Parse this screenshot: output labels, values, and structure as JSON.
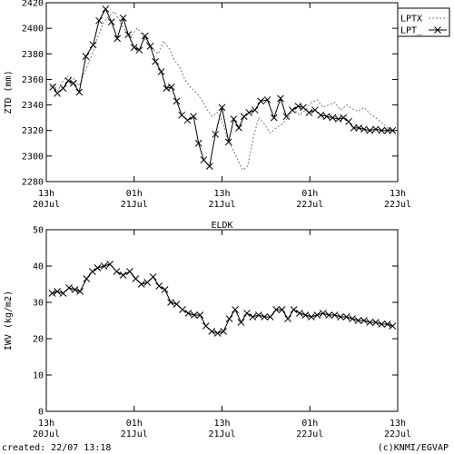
{
  "chart_data": [
    {
      "type": "line",
      "ylabel": "ZTD (mm)",
      "ylim": [
        2280,
        2420
      ],
      "yticks": [
        2280,
        2300,
        2320,
        2340,
        2360,
        2380,
        2400,
        2420
      ],
      "xlim": [
        0,
        48
      ],
      "xticks": [
        {
          "x": 0,
          "top": "13h",
          "bottom": "20Jul"
        },
        {
          "x": 12,
          "top": "01h",
          "bottom": "21Jul"
        },
        {
          "x": 24,
          "top": "13h",
          "bottom": "21Jul"
        },
        {
          "x": 36,
          "top": "01h",
          "bottom": "22Jul"
        },
        {
          "x": 48,
          "top": "13h",
          "bottom": "22Jul"
        }
      ],
      "legend": "top-right",
      "series": [
        {
          "name": "LPTX",
          "style": "dotted",
          "x": [
            0.5,
            1.0,
            1.6,
            2.2,
            3.0,
            3.8,
            4.5,
            5.4,
            6.3,
            7.0,
            7.8,
            8.6,
            9.3,
            10.0,
            10.8,
            11.6,
            12.4,
            13.1,
            13.8,
            14.5,
            15.3,
            16.0,
            16.8,
            17.5,
            18.2,
            18.9,
            19.7,
            20.4,
            21.1,
            21.8,
            22.6,
            23.3,
            24.0,
            24.7,
            25.4,
            26.1,
            26.8,
            27.5,
            28.3,
            29.0,
            29.8,
            30.6,
            31.4,
            32.2,
            33.0,
            33.8,
            34.6,
            35.4,
            36.2,
            37.0,
            37.8,
            38.6,
            39.4,
            40.2,
            41.0,
            41.8,
            42.6,
            43.4,
            44.2,
            45.0,
            45.8,
            46.6,
            47.4
          ],
          "y": [
            2354,
            2356,
            2351,
            2358,
            2363,
            2360,
            2355,
            2368,
            2380,
            2393,
            2404,
            2410,
            2413,
            2406,
            2398,
            2394,
            2400,
            2395,
            2388,
            2384,
            2380,
            2390,
            2384,
            2375,
            2370,
            2360,
            2354,
            2350,
            2345,
            2338,
            2331,
            2334,
            2328,
            2315,
            2306,
            2298,
            2289,
            2292,
            2315,
            2330,
            2325,
            2318,
            2322,
            2325,
            2330,
            2336,
            2332,
            2336,
            2342,
            2344,
            2338,
            2340,
            2342,
            2336,
            2340,
            2337,
            2335,
            2338,
            2333,
            2330,
            2326,
            2322,
            2319
          ]
        },
        {
          "name": "LPT_",
          "style": "solid-cross",
          "x": [
            0.9,
            1.5,
            2.3,
            3.0,
            3.7,
            4.5,
            5.4,
            6.4,
            7.2,
            8.1,
            8.9,
            9.7,
            10.5,
            11.2,
            12.0,
            12.7,
            13.5,
            14.2,
            14.9,
            15.7,
            16.4,
            17.1,
            17.8,
            18.5,
            19.3,
            20.1,
            20.8,
            21.5,
            22.3,
            23.1,
            24.0,
            24.9,
            25.6,
            26.3,
            27.0,
            27.7,
            28.5,
            29.3,
            30.2,
            31.1,
            32.0,
            32.8,
            33.6,
            34.4,
            35.1,
            35.9,
            36.7,
            37.5,
            38.3,
            39.1,
            39.9,
            40.6,
            41.3,
            42.0,
            42.7,
            43.4,
            44.2,
            45.0,
            45.8,
            46.6,
            47.3
          ],
          "y": [
            2354,
            2349,
            2353,
            2359,
            2357,
            2350,
            2378,
            2387,
            2406,
            2415,
            2405,
            2392,
            2408,
            2395,
            2385,
            2383,
            2394,
            2386,
            2374,
            2366,
            2353,
            2354,
            2343,
            2332,
            2328,
            2331,
            2310,
            2297,
            2292,
            2317,
            2338,
            2311,
            2329,
            2322,
            2331,
            2334,
            2336,
            2343,
            2344,
            2330,
            2345,
            2331,
            2336,
            2339,
            2338,
            2334,
            2336,
            2332,
            2331,
            2330,
            2329,
            2330,
            2327,
            2322,
            2322,
            2321,
            2320,
            2321,
            2320,
            2320,
            2320
          ]
        }
      ]
    },
    {
      "type": "line",
      "title": "ELDK",
      "ylabel": "IWV (kg/m2)",
      "ylim": [
        0,
        50
      ],
      "yticks": [
        0,
        10,
        20,
        30,
        40,
        50
      ],
      "xlim": [
        0,
        48
      ],
      "xticks": [
        {
          "x": 0,
          "top": "13h",
          "bottom": "20Jul"
        },
        {
          "x": 12,
          "top": "01h",
          "bottom": "21Jul"
        },
        {
          "x": 24,
          "top": "13h",
          "bottom": "21Jul"
        },
        {
          "x": 36,
          "top": "01h",
          "bottom": "22Jul"
        },
        {
          "x": 48,
          "top": "13h",
          "bottom": "22Jul"
        }
      ],
      "series": [
        {
          "name": "IWV",
          "style": "solid-cross",
          "x": [
            0.8,
            1.5,
            2.3,
            3.1,
            3.9,
            4.6,
            5.5,
            6.3,
            7.0,
            7.9,
            8.7,
            9.6,
            10.5,
            11.4,
            12.2,
            13.0,
            13.8,
            14.6,
            15.4,
            16.2,
            17.0,
            17.8,
            18.6,
            19.4,
            20.2,
            21.0,
            21.8,
            22.6,
            23.4,
            24.2,
            25.0,
            25.8,
            26.6,
            27.4,
            28.2,
            29.0,
            29.8,
            30.6,
            31.4,
            32.2,
            33.0,
            33.8,
            34.6,
            35.4,
            36.2,
            37.0,
            37.8,
            38.6,
            39.4,
            40.2,
            41.0,
            41.8,
            42.6,
            43.4,
            44.2,
            45.0,
            45.8,
            46.6,
            47.3
          ],
          "y": [
            32.5,
            33.0,
            32.5,
            34.0,
            33.5,
            33.0,
            36.5,
            38.5,
            39.5,
            40.0,
            40.5,
            38.5,
            37.5,
            38.5,
            36.5,
            35.0,
            35.5,
            37.0,
            34.5,
            33.5,
            30.0,
            29.5,
            28.0,
            27.0,
            26.5,
            26.5,
            23.5,
            22.0,
            21.5,
            22.0,
            25.5,
            28.0,
            24.5,
            27.0,
            26.0,
            26.5,
            26.0,
            26.0,
            28.0,
            28.0,
            25.5,
            28.0,
            27.0,
            26.5,
            26.0,
            26.5,
            27.0,
            26.5,
            26.5,
            26.0,
            26.0,
            25.5,
            25.0,
            25.0,
            24.5,
            24.5,
            24.0,
            24.0,
            23.5
          ]
        }
      ]
    }
  ],
  "footer": {
    "created": "created: 22/07 13:18",
    "credit": "(c)KNMI/EGVAP"
  }
}
